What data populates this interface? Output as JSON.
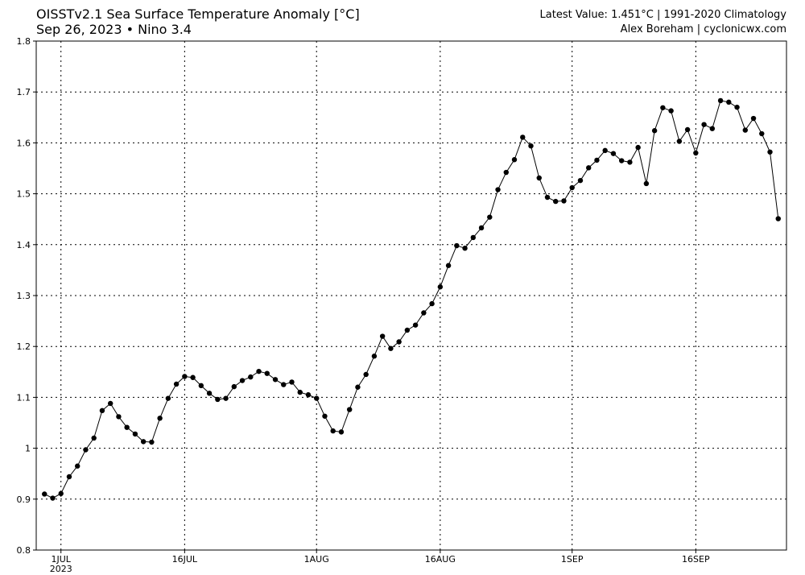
{
  "header": {
    "title": "OISSTv2.1 Sea Surface Temperature Anomaly [°C]",
    "subtitle": "Sep 26, 2023 • Nino 3.4",
    "latest": "Latest Value: 1.451°C | 1991-2020 Climatology",
    "credit": "Alex Boreham | cyclonicwx.com"
  },
  "chart_data": {
    "type": "line",
    "title": "OISSTv2.1 Sea Surface Temperature Anomaly [°C]",
    "subtitle": "Sep 26, 2023 • Nino 3.4",
    "xlabel": "",
    "ylabel": "",
    "x_start": "2023-06-29",
    "x_end": "2023-09-26",
    "xlim": [
      "2023-06-28",
      "2023-09-27"
    ],
    "ylim": [
      0.8,
      1.8
    ],
    "yticks": [
      0.8,
      0.9,
      1.0,
      1.1,
      1.2,
      1.3,
      1.4,
      1.5,
      1.6,
      1.7,
      1.8
    ],
    "ytick_labels": [
      "0.8",
      "0.9",
      "1",
      "1.1",
      "1.2",
      "1.3",
      "1.4",
      "1.5",
      "1.6",
      "1.7",
      "1.8"
    ],
    "xticks": [
      {
        "date": "2023-07-01",
        "label": "1JUL",
        "sublabel": "2023"
      },
      {
        "date": "2023-07-16",
        "label": "16JUL",
        "sublabel": ""
      },
      {
        "date": "2023-08-01",
        "label": "1AUG",
        "sublabel": ""
      },
      {
        "date": "2023-08-16",
        "label": "16AUG",
        "sublabel": ""
      },
      {
        "date": "2023-09-01",
        "label": "1SEP",
        "sublabel": ""
      },
      {
        "date": "2023-09-16",
        "label": "16SEP",
        "sublabel": ""
      }
    ],
    "grid": true,
    "line_color": "#000000",
    "series": [
      {
        "name": "Nino 3.4",
        "values": [
          0.91,
          0.902,
          0.911,
          0.944,
          0.965,
          0.997,
          1.02,
          1.074,
          1.088,
          1.062,
          1.041,
          1.028,
          1.013,
          1.012,
          1.059,
          1.098,
          1.126,
          1.141,
          1.139,
          1.123,
          1.108,
          1.096,
          1.098,
          1.121,
          1.133,
          1.14,
          1.151,
          1.147,
          1.135,
          1.125,
          1.13,
          1.11,
          1.105,
          1.098,
          1.063,
          1.034,
          1.032,
          1.076,
          1.12,
          1.145,
          1.181,
          1.22,
          1.196,
          1.209,
          1.232,
          1.242,
          1.266,
          1.284,
          1.317,
          1.359,
          1.398,
          1.393,
          1.414,
          1.433,
          1.454,
          1.508,
          1.542,
          1.567,
          1.611,
          1.594,
          1.531,
          1.493,
          1.485,
          1.486,
          1.512,
          1.526,
          1.551,
          1.566,
          1.585,
          1.579,
          1.565,
          1.562,
          1.591,
          1.52,
          1.624,
          1.669,
          1.663,
          1.603,
          1.626,
          1.58,
          1.636,
          1.628,
          1.683,
          1.68,
          1.67,
          1.625,
          1.648,
          1.618,
          1.582,
          1.451
        ]
      }
    ]
  }
}
